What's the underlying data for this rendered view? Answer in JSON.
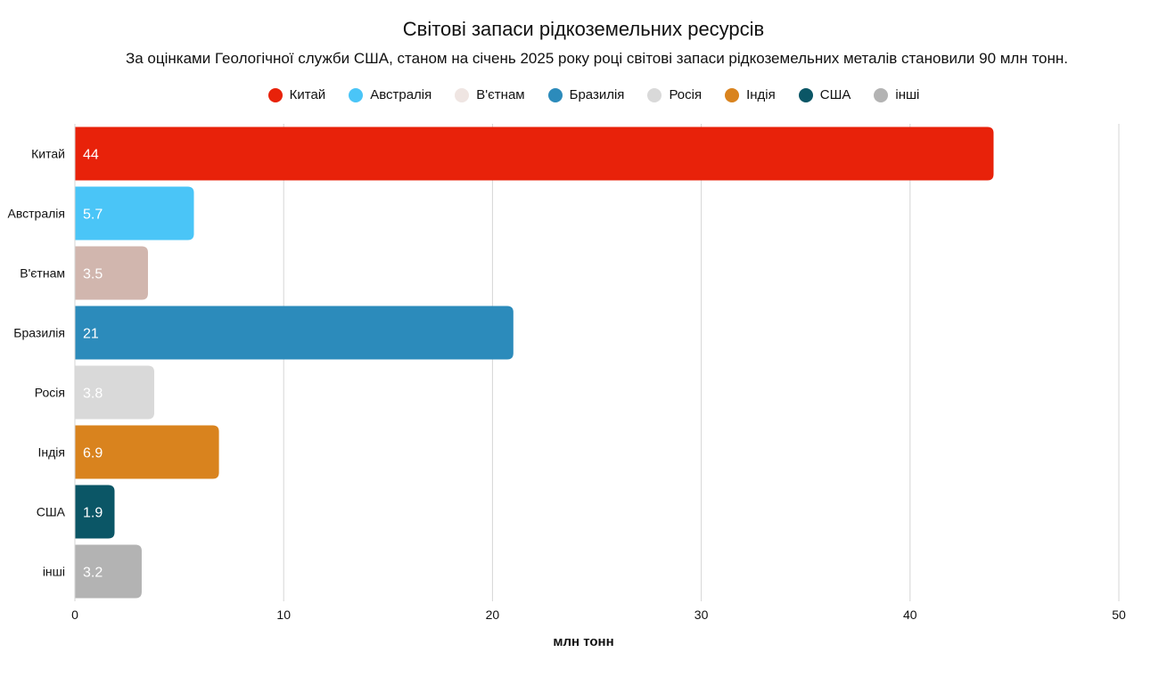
{
  "chart_data": {
    "type": "bar",
    "orientation": "horizontal",
    "title": "Світові запаси рідкоземельних ресурсів",
    "subtitle": "За оцінками Геологічної служби США, станом на січень 2025 року році світові запаси рідкоземельних металів становили 90 млн тонн.",
    "xlabel": "млн тонн",
    "ylabel": "",
    "xlim": [
      0,
      50
    ],
    "xticks": [
      0,
      10,
      20,
      30,
      40,
      50
    ],
    "grid": true,
    "legend_position": "top",
    "categories": [
      "Китай",
      "Австралія",
      "В'єтнам",
      "Бразилія",
      "Росія",
      "Індія",
      "США",
      "інші"
    ],
    "values": [
      44,
      5.7,
      3.5,
      21,
      3.8,
      6.9,
      1.9,
      3.2
    ],
    "value_labels": [
      "44",
      "5.7",
      "3.5",
      "21",
      "3.8",
      "6.9",
      "1.9",
      "3.2"
    ],
    "bar_colors": [
      "#e8220a",
      "#4ac5f7",
      "#d1b6ae",
      "#2c8bbb",
      "#d9d9d9",
      "#d9831e",
      "#0b5666",
      "#b3b3b3"
    ],
    "legend": [
      {
        "label": "Китай",
        "color": "#e8220a"
      },
      {
        "label": "Австралія",
        "color": "#4ac5f7"
      },
      {
        "label": "В'єтнам",
        "color": "#efe5e2"
      },
      {
        "label": "Бразилія",
        "color": "#2c8bbb"
      },
      {
        "label": "Росія",
        "color": "#d9d9d9"
      },
      {
        "label": "Індія",
        "color": "#d9831e"
      },
      {
        "label": "США",
        "color": "#0b5666"
      },
      {
        "label": "інші",
        "color": "#b3b3b3"
      }
    ]
  }
}
